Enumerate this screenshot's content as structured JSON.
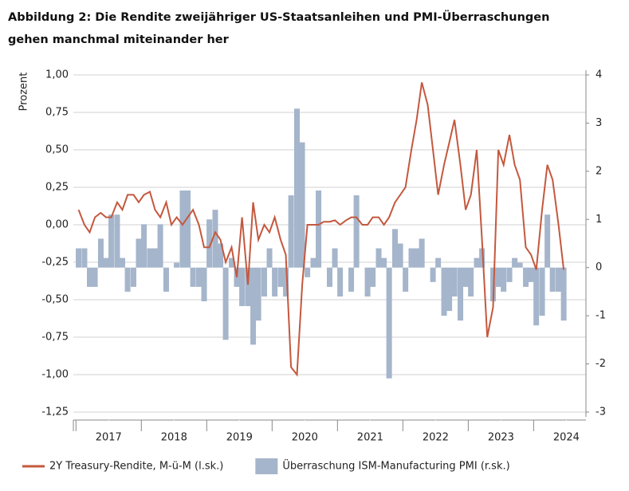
{
  "chart_data": {
    "type": "bar-line",
    "title": "Abbildung 2: Die Rendite zweijähriger US-Staatsanleihen und PMI-Überraschungen gehen manchmal miteinander her",
    "y_label": "Prozent",
    "x": [
      2017.04,
      2017.13,
      2017.21,
      2017.29,
      2017.38,
      2017.46,
      2017.54,
      2017.63,
      2017.71,
      2017.79,
      2017.88,
      2017.96,
      2018.04,
      2018.13,
      2018.21,
      2018.29,
      2018.38,
      2018.46,
      2018.54,
      2018.63,
      2018.71,
      2018.79,
      2018.88,
      2018.96,
      2019.04,
      2019.13,
      2019.21,
      2019.29,
      2019.38,
      2019.46,
      2019.54,
      2019.63,
      2019.71,
      2019.79,
      2019.88,
      2019.96,
      2020.04,
      2020.13,
      2020.21,
      2020.29,
      2020.38,
      2020.46,
      2020.54,
      2020.63,
      2020.71,
      2020.79,
      2020.88,
      2020.96,
      2021.04,
      2021.13,
      2021.21,
      2021.29,
      2021.38,
      2021.46,
      2021.54,
      2021.63,
      2021.71,
      2021.79,
      2021.88,
      2021.96,
      2022.04,
      2022.13,
      2022.21,
      2022.29,
      2022.38,
      2022.46,
      2022.54,
      2022.63,
      2022.71,
      2022.79,
      2022.88,
      2022.96,
      2023.04,
      2023.13,
      2023.21,
      2023.29,
      2023.38,
      2023.46,
      2023.54,
      2023.63,
      2023.71,
      2023.79,
      2023.88,
      2023.96,
      2024.04,
      2024.13,
      2024.21,
      2024.29,
      2024.38,
      2024.46
    ],
    "series": [
      {
        "name": "2Y Treasury-Rendite, M-ü-M (l.sk.)",
        "color": "#c4583e",
        "type": "line",
        "values": [
          0.1,
          0.0,
          -0.05,
          0.05,
          0.08,
          0.05,
          0.05,
          0.15,
          0.1,
          0.2,
          0.2,
          0.15,
          0.2,
          0.22,
          0.1,
          0.05,
          0.15,
          0.0,
          0.05,
          0.0,
          0.05,
          0.1,
          0.0,
          -0.15,
          -0.15,
          -0.05,
          -0.1,
          -0.25,
          -0.15,
          -0.35,
          0.05,
          -0.4,
          0.15,
          -0.1,
          0.0,
          -0.05,
          0.05,
          -0.1,
          -0.2,
          -0.95,
          -1.0,
          -0.4,
          0.0,
          0.0,
          0.0,
          0.02,
          0.02,
          0.03,
          0.0,
          0.03,
          0.05,
          0.05,
          0.0,
          0.0,
          0.05,
          0.05,
          0.0,
          0.05,
          0.15,
          0.2,
          0.25,
          0.5,
          0.7,
          0.95,
          0.8,
          0.5,
          0.2,
          0.4,
          0.55,
          0.7,
          0.4,
          0.1,
          0.2,
          0.5,
          -0.1,
          -0.75,
          -0.55,
          0.5,
          0.4,
          0.6,
          0.4,
          0.3,
          -0.15,
          -0.2,
          -0.3,
          0.1,
          0.4,
          0.3,
          0.0,
          -0.3
        ]
      },
      {
        "name": "Überraschung ISM-Manufacturing PMI (r.sk.)",
        "color": "#a5b5cb",
        "type": "bar",
        "axis": "y2",
        "values": [
          0.4,
          0.4,
          -0.4,
          -0.4,
          0.6,
          0.2,
          1.1,
          1.1,
          0.2,
          -0.5,
          -0.4,
          0.6,
          0.9,
          0.4,
          0.4,
          0.9,
          -0.5,
          0.0,
          0.1,
          1.6,
          1.6,
          -0.4,
          -0.4,
          -0.7,
          1.0,
          1.2,
          0.5,
          -1.5,
          0.2,
          -0.4,
          -0.8,
          -0.8,
          -1.6,
          -1.1,
          -0.6,
          0.4,
          -0.6,
          -0.4,
          -0.6,
          1.5,
          3.3,
          2.6,
          -0.2,
          0.2,
          1.6,
          0.0,
          -0.4,
          0.4,
          -0.6,
          0.0,
          -0.5,
          1.5,
          0.0,
          -0.6,
          -0.4,
          0.4,
          0.2,
          -2.3,
          0.8,
          0.5,
          -0.5,
          0.4,
          0.4,
          0.6,
          0.0,
          -0.3,
          0.2,
          -1.0,
          -0.9,
          -0.6,
          -1.1,
          -0.4,
          -0.6,
          0.2,
          0.4,
          0.0,
          -0.7,
          -0.4,
          -0.5,
          -0.3,
          0.2,
          0.1,
          -0.4,
          -0.3,
          -1.2,
          -1.0,
          1.1,
          -0.5,
          -0.5,
          -1.1
        ]
      }
    ],
    "xlim": [
      2016.96,
      2024.8
    ],
    "xticks": [
      {
        "value": 2017.5,
        "label": "2017"
      },
      {
        "value": 2018.5,
        "label": "2018"
      },
      {
        "value": 2019.5,
        "label": "2019"
      },
      {
        "value": 2020.5,
        "label": "2020"
      },
      {
        "value": 2021.5,
        "label": "2021"
      },
      {
        "value": 2022.5,
        "label": "2022"
      },
      {
        "value": 2023.5,
        "label": "2023"
      },
      {
        "value": 2024.5,
        "label": "2024"
      }
    ],
    "ylim": [
      -1.25,
      1.0
    ],
    "yticks": [
      {
        "value": 1.0,
        "label": "1,00"
      },
      {
        "value": 0.75,
        "label": "0,75"
      },
      {
        "value": 0.5,
        "label": "0,50"
      },
      {
        "value": 0.25,
        "label": "0,25"
      },
      {
        "value": 0,
        "label": "0,00"
      },
      {
        "value": -0.25,
        "label": "-0,25"
      },
      {
        "value": -0.5,
        "label": "-0,50"
      },
      {
        "value": -0.75,
        "label": "-0,75"
      },
      {
        "value": -1.0,
        "label": "-1,00"
      },
      {
        "value": -1.25,
        "label": "-1,25"
      }
    ],
    "y2lim": [
      -3,
      4
    ],
    "y2ticks": [
      4,
      3,
      2,
      1,
      0,
      -1,
      -2,
      -3
    ],
    "grid": true
  }
}
